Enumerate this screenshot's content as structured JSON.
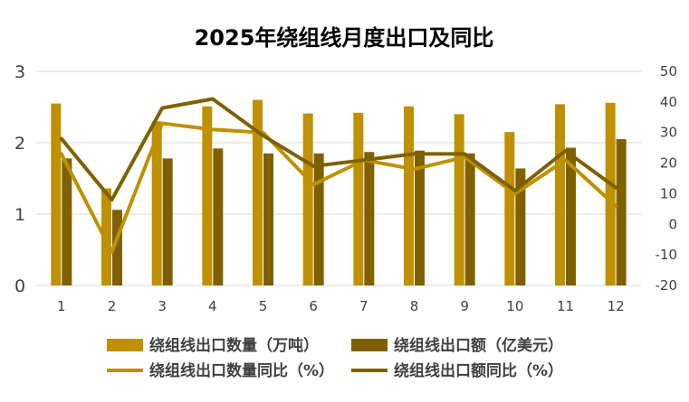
{
  "chart_data": {
    "type": "bar",
    "title": "2025年绕组线月度出口及同比",
    "categories": [
      "1",
      "2",
      "3",
      "4",
      "5",
      "6",
      "7",
      "8",
      "9",
      "10",
      "11",
      "12"
    ],
    "series": [
      {
        "name": "绕组线出口数量（万吨）",
        "kind": "bar",
        "axis": "left",
        "color": "#bf9000",
        "values": [
          2.55,
          1.36,
          2.3,
          2.51,
          2.6,
          2.41,
          2.42,
          2.51,
          2.4,
          2.15,
          2.54,
          2.56
        ]
      },
      {
        "name": "绕组线出口额（亿美元）",
        "kind": "bar",
        "axis": "left",
        "color": "#7f6000",
        "values": [
          1.78,
          1.06,
          1.78,
          1.92,
          1.85,
          1.85,
          1.87,
          1.89,
          1.85,
          1.64,
          1.93,
          2.05
        ]
      },
      {
        "name": "绕组线出口数量同比（%）",
        "kind": "line",
        "axis": "right",
        "color": "#bf9000",
        "values": [
          23,
          -9,
          33,
          31,
          30,
          13,
          21,
          18,
          22,
          10,
          21,
          6
        ]
      },
      {
        "name": "绕组线出口额同比（%）",
        "kind": "line",
        "axis": "right",
        "color": "#7f6000",
        "values": [
          28,
          8,
          38,
          41,
          29,
          19,
          21,
          23,
          23,
          11,
          24,
          12
        ]
      }
    ],
    "y_left": {
      "min": 0,
      "max": 3,
      "ticks": [
        0,
        1,
        2,
        3
      ]
    },
    "y_right": {
      "min": -20,
      "max": 50,
      "ticks": [
        -20,
        -10,
        0,
        10,
        20,
        30,
        40,
        50
      ]
    },
    "grid": true,
    "legend_position": "bottom"
  }
}
